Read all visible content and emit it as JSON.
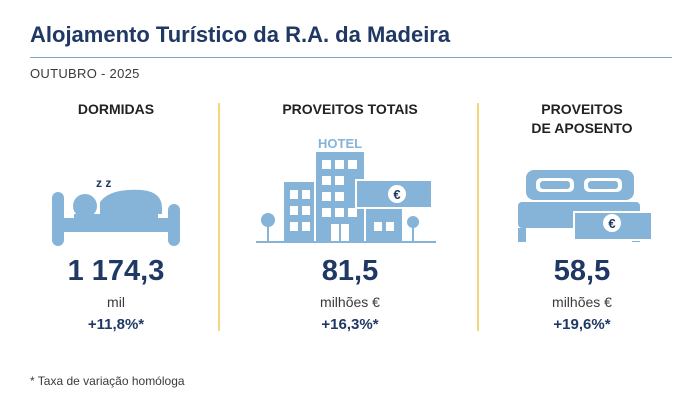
{
  "header": {
    "title": "Alojamento Turístico da R.A. da Madeira",
    "period": "OUTUBRO - 2025"
  },
  "indicators": [
    {
      "label": "DORMIDAS",
      "value": "1 174,3",
      "unit": "mil",
      "rate": "+11,8%*",
      "icon": "sleeping-person-icon"
    },
    {
      "label": "PROVEITOS TOTAIS",
      "value": "81,5",
      "unit": "milhões €",
      "rate": "+16,3%*",
      "icon": "hotel-icon",
      "icon_text": "HOTEL",
      "currency_symbol": "€"
    },
    {
      "label_line1": "PROVEITOS",
      "label_line2": "DE APOSENTO",
      "value": "58,5",
      "unit": "milhões €",
      "rate": "+19,6%*",
      "icon": "bed-money-icon",
      "currency_symbol": "€"
    }
  ],
  "sleep_glyph": "z z",
  "footnote": "* Taxa de variação homóloga",
  "colors": {
    "navy": "#1f3864",
    "icon_blue": "#86b3d8",
    "divider": "#f3d77a",
    "rule": "#7aa7c7"
  }
}
